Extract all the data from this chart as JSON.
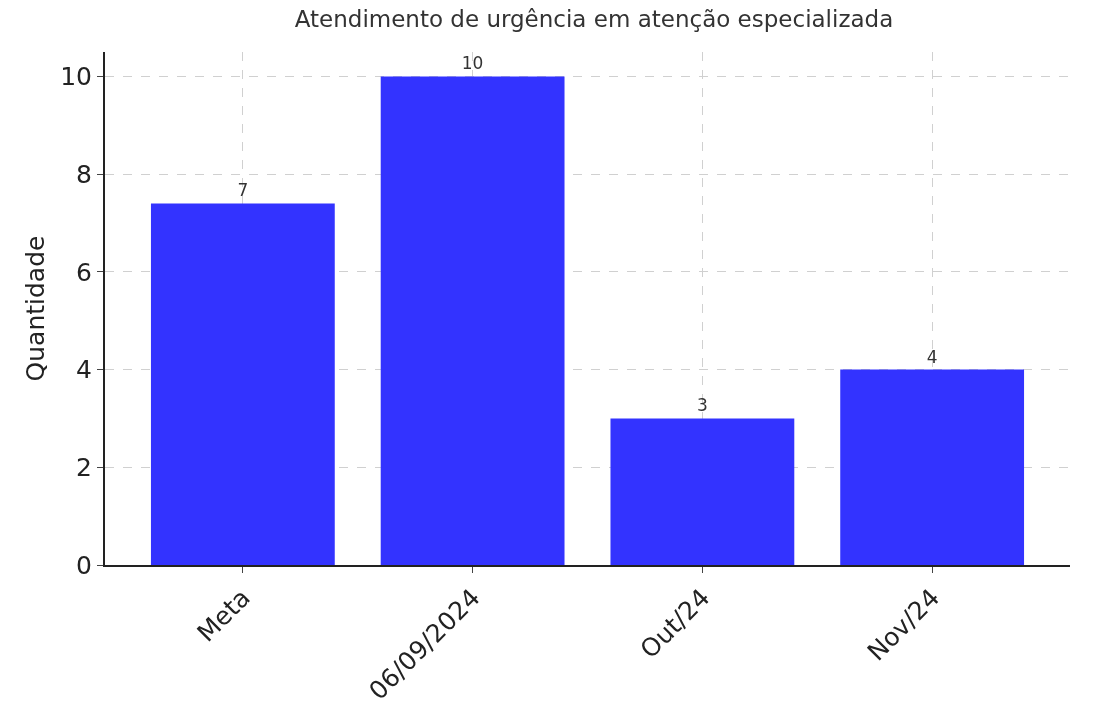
{
  "chart_data": {
    "type": "bar",
    "title": "Atendimento de urgência em atenção especializada",
    "ylabel": "Quantidade",
    "categories": [
      "Meta",
      "06/09/2024",
      "Out/24",
      "Nov/24"
    ],
    "values": [
      7.4,
      10,
      3,
      4
    ],
    "value_labels": [
      "7",
      "10",
      "3",
      "4"
    ],
    "color": "#3333ff",
    "ylim": [
      0,
      10.5
    ],
    "yticks": [
      0,
      2,
      4,
      6,
      8,
      10
    ],
    "grid": true
  }
}
